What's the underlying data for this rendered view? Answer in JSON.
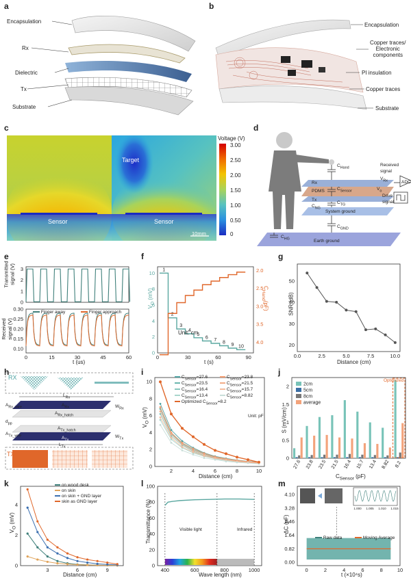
{
  "panels": {
    "a": {
      "label": "a",
      "layers": [
        "Encapsulation",
        "Rx",
        "Dielectric",
        "Tx",
        "Substrate"
      ]
    },
    "b": {
      "label": "b",
      "layers": [
        "Encapsulation",
        "Copper traces/\nElectronic\ncomponents",
        "PI insulation",
        "Copper traces",
        "Substrate"
      ]
    },
    "c": {
      "label": "c",
      "target": "Target",
      "sensor_left": "Sensor",
      "sensor_right": "Sensor",
      "scale": "10mm",
      "cbar_title": "Voltage (V)",
      "cbar_ticks": [
        "3.00",
        "2.50",
        "2.00",
        "1.50",
        "1.00",
        "0.50",
        "0"
      ]
    },
    "d": {
      "label": "d",
      "c_hand": "C",
      "c_hand_sub": "Hand",
      "rx": "Rx",
      "v_rx": "V",
      "v_rx_sub": "Rx",
      "pdms": "PDMS",
      "c_sensor": "C",
      "c_sensor_sub": "Sensor",
      "v_o": "V",
      "v_o_sub": "o",
      "tx": "Tx",
      "c_ng": "C",
      "c_ng_sub": "NG",
      "c_tg": "C",
      "c_tg_sub": "TG",
      "system_ground": "System ground",
      "c_gnd": "C",
      "c_gnd_sub": "GND",
      "c_hg": "C",
      "c_hg_sub": "HG",
      "earth_ground": "Earth ground",
      "received_signal": "Received\nsignal",
      "drive_signal": "Drive\nsignal",
      "adc": "ADC"
    },
    "e": {
      "label": "e",
      "ylabel_top": "Transmitted\nsignal (V)",
      "ylabel_bottom": "Received\nsignal (V)",
      "xlabel": "t (us)",
      "legend_away": "Finger away",
      "legend_approach": "Finger approach"
    },
    "f": {
      "label": "f",
      "xlabel": "t (s)",
      "ylabel_left": "V",
      "ylabel_left_sub": "O",
      "ylabel_left_unit": " (mV)",
      "ylabel_right": "C",
      "ylabel_right_sub": "Hand",
      "ylabel_right_unit": "(pF)",
      "unit": "Unit: cm"
    },
    "g": {
      "label": "g",
      "xlabel": "Distance (cm)",
      "ylabel": "SNR (dB)"
    },
    "h": {
      "label": "h",
      "rx": "RX",
      "tx": "TX",
      "l_rx": "L",
      "l_rx_sub": "Rx",
      "a_rx": "A",
      "a_rx_sub": "Rx",
      "w_rx": "W",
      "w_rx_sub": "Rx",
      "a_rx_wire": "A",
      "a_rx_wire_sub": "Rx_wire",
      "a_rx_hatch": "A",
      "a_rx_hatch_sub": "Rx_hatch",
      "d_pp": "d",
      "d_pp_sub": "pp",
      "a_tx_wire": "A",
      "a_tx_wire_sub": "Tx_wire",
      "a_tx_hatch": "A",
      "a_tx_hatch_sub": "Tx_hatch",
      "a_tx": "A",
      "a_tx_sub": "Tx",
      "w_tx": "W",
      "w_tx_sub": "Tx",
      "l_tx": "L",
      "l_tx_sub": "Tx"
    },
    "i": {
      "label": "i",
      "xlabel": "Distance (cm)",
      "ylabel": "V",
      "ylabel_sub": "O",
      "ylabel_unit": " (mV)",
      "unit": "Unit: pF",
      "optimized": "Optimized",
      "legend_prefix": "C",
      "legend_sub": "Sensor"
    },
    "j": {
      "label": "j",
      "xlabel": "C",
      "xlabel_sub": "Sensor",
      "xlabel_unit": " (pF)",
      "ylabel": "S (mV/cm)",
      "optimized": "Optimized"
    },
    "k": {
      "label": "k",
      "xlabel": "Distance (cm)",
      "ylabel": "V",
      "ylabel_sub": "O",
      "ylabel_unit": " (mV)"
    },
    "l": {
      "label": "l",
      "xlabel": "Wave length (nm)",
      "ylabel": "Transmittance (%)",
      "visible": "Visible light",
      "infrared": "Infrared"
    },
    "m": {
      "label": "m",
      "xlabel": "t (×10⁴s)",
      "ylabel": "ΔC (pF)",
      "legend_raw": "Raw data",
      "legend_ma": "Moving Average",
      "inset_x": [
        "1.000",
        "1.005",
        "1.010",
        "1.015"
      ]
    }
  },
  "colors": {
    "teal": "#5aa7a0",
    "orange": "#e0672a",
    "blue": "#3b6fb0",
    "darkteal": "#3e7f7a"
  },
  "chart_data": [
    {
      "id": "e",
      "type": "line",
      "x": [
        0,
        15,
        30,
        45,
        60
      ],
      "xlabel": "t (us)",
      "xlim": [
        0,
        60
      ],
      "top_yticks": [
        0,
        1,
        2,
        3
      ],
      "bottom_yticks": [
        0.1,
        0.15,
        0.2,
        0.25,
        0.3
      ],
      "series": [
        {
          "name": "Finger away"
        },
        {
          "name": "Finger approach"
        }
      ]
    },
    {
      "id": "f",
      "type": "line",
      "xlabel": "t (s)",
      "xlim": [
        0,
        90
      ],
      "xticks": [
        0,
        30,
        60,
        90
      ],
      "left_yticks": [
        0,
        2,
        4,
        6,
        8,
        10
      ],
      "right_yticks": [
        "2.0",
        "2.5",
        "3.0",
        "3.5",
        "4.0"
      ],
      "steps": [
        "1",
        "2",
        "3",
        "4",
        "5",
        "6",
        "7",
        "8",
        "9",
        "10"
      ],
      "vo_levels": [
        10.0,
        4.4,
        3.0,
        2.4,
        1.9,
        1.5,
        1.2,
        0.9,
        0.6,
        0.4
      ],
      "chand_levels": [
        4.35,
        3.2,
        2.9,
        2.7,
        2.55,
        2.4,
        2.3,
        2.2,
        2.12,
        2.05
      ]
    },
    {
      "id": "g",
      "type": "line",
      "xlabel": "Distance (cm)",
      "ylabel": "SNR (dB)",
      "x": [
        1,
        2,
        3,
        4,
        5,
        6,
        7,
        8,
        9,
        10
      ],
      "values": [
        53.8,
        47.0,
        40.5,
        40.1,
        36.4,
        35.7,
        27.2,
        27.6,
        24.8,
        21.2
      ],
      "xlim": [
        0,
        10.5
      ],
      "ylim": [
        17,
        58
      ],
      "xticks": [
        "0.0",
        "2.5",
        "5.0",
        "7.5",
        "10.0"
      ],
      "yticks": [
        20,
        30,
        40,
        50
      ]
    },
    {
      "id": "i",
      "type": "line",
      "xlabel": "Distance (cm)",
      "x": [
        1,
        2,
        3,
        4,
        5,
        6,
        7,
        8,
        9,
        10
      ],
      "xticks": [
        2,
        4,
        6,
        8,
        10
      ],
      "yticks": [
        0,
        2,
        4,
        6,
        8,
        10
      ],
      "ylim": [
        0,
        10.5
      ],
      "series": [
        {
          "name": "27.6",
          "values": [
            7.4,
            4.3,
            3.0,
            2.2,
            1.6,
            1.2,
            0.95,
            0.75,
            0.6,
            0.5
          ]
        },
        {
          "name": "23.5",
          "values": [
            6.8,
            3.9,
            2.7,
            2.0,
            1.5,
            1.1,
            0.9,
            0.7,
            0.55,
            0.45
          ]
        },
        {
          "name": "16.4",
          "values": [
            6.2,
            3.6,
            2.5,
            1.8,
            1.3,
            1.0,
            0.8,
            0.6,
            0.5,
            0.4
          ]
        },
        {
          "name": "13.4",
          "values": [
            5.5,
            3.2,
            2.2,
            1.6,
            1.2,
            0.9,
            0.7,
            0.55,
            0.45,
            0.35
          ]
        },
        {
          "name": "23.8",
          "values": [
            7.0,
            4.0,
            2.8,
            2.1,
            1.55,
            1.15,
            0.9,
            0.72,
            0.58,
            0.47
          ]
        },
        {
          "name": "21.5",
          "values": [
            6.5,
            3.8,
            2.6,
            1.9,
            1.4,
            1.05,
            0.85,
            0.65,
            0.52,
            0.42
          ]
        },
        {
          "name": "15.7",
          "values": [
            5.8,
            3.4,
            2.3,
            1.7,
            1.25,
            0.95,
            0.75,
            0.58,
            0.47,
            0.38
          ]
        },
        {
          "name": "8.82",
          "values": [
            4.9,
            2.8,
            1.9,
            1.4,
            1.0,
            0.8,
            0.6,
            0.48,
            0.4,
            0.3
          ]
        },
        {
          "name": "8.2",
          "values": [
            10.0,
            6.2,
            4.5,
            3.5,
            2.6,
            1.9,
            1.5,
            1.1,
            0.8,
            0.5
          ]
        }
      ]
    },
    {
      "id": "j",
      "type": "bar",
      "categories": [
        "27.6",
        "23.8",
        "23.5",
        "21.5",
        "16.4",
        "15.7",
        "13.4",
        "8.82",
        "8.2"
      ],
      "yticks": [
        0,
        0.5,
        1.0,
        1.5,
        2.0
      ],
      "ylim": [
        0,
        2.25
      ],
      "series": [
        {
          "name": "2cm",
          "values": [
            0.28,
            0.9,
            1.15,
            1.2,
            1.62,
            1.3,
            1.0,
            0.85,
            2.18
          ]
        },
        {
          "name": "5cm",
          "values": [
            0.03,
            0.03,
            0.03,
            0.03,
            0.03,
            0.03,
            0.03,
            0.03,
            0.03
          ]
        },
        {
          "name": "8cm",
          "values": [
            0.08,
            0.09,
            0.1,
            0.1,
            0.12,
            0.1,
            0.09,
            0.08,
            0.16
          ]
        },
        {
          "name": "average",
          "values": [
            0.58,
            0.63,
            0.65,
            0.58,
            0.55,
            0.42,
            0.4,
            0.3,
            0.98
          ]
        }
      ]
    },
    {
      "id": "k",
      "type": "line",
      "xlabel": "Distance (cm)",
      "x": [
        1,
        2,
        3,
        4,
        5,
        6,
        7,
        8,
        9,
        10
      ],
      "xticks": [
        3,
        6,
        9
      ],
      "yticks": [
        0,
        2,
        4
      ],
      "ylim": [
        0,
        5.2
      ],
      "series": [
        {
          "name": "on wood desk",
          "values": [
            2.1,
            1.2,
            0.6,
            0.3,
            0.15,
            0.08,
            0.05,
            0.03,
            0.02,
            0.01
          ]
        },
        {
          "name": "on skin",
          "values": [
            0.6,
            0.4,
            0.25,
            0.15,
            0.1,
            0.06,
            0.04,
            0.03,
            0.02,
            0.01
          ]
        },
        {
          "name": "on skin + GND layer",
          "values": [
            3.8,
            2.2,
            1.2,
            0.8,
            0.5,
            0.3,
            0.2,
            0.12,
            0.08,
            0.05
          ]
        },
        {
          "name": "skin as GND layer",
          "values": [
            5.0,
            2.9,
            1.7,
            1.2,
            0.8,
            0.55,
            0.4,
            0.3,
            0.2,
            0.1
          ]
        }
      ]
    },
    {
      "id": "l",
      "type": "line",
      "xlabel": "Wave length (nm)",
      "ylabel": "Transmittance (%)",
      "x": [
        400,
        420,
        450,
        500,
        600,
        700,
        800,
        900,
        1000
      ],
      "values": [
        76,
        80,
        81,
        82,
        83,
        83.5,
        84,
        84,
        83.5
      ],
      "xticks": [
        400,
        600,
        800,
        1000
      ],
      "yticks": [
        0,
        20,
        40,
        60,
        80,
        100
      ],
      "xlim": [
        350,
        1050
      ],
      "ylim": [
        0,
        100
      ]
    },
    {
      "id": "m",
      "type": "line",
      "xlabel": "t (×10⁴s)",
      "ylabel": "ΔC (pF)",
      "xticks": [
        0,
        2,
        4,
        6,
        8,
        10
      ],
      "yticks": [
        "0.00",
        "0.82",
        "1.64",
        "2.46",
        "3.28",
        "4.10"
      ],
      "xlim": [
        -1,
        10
      ],
      "ylim": [
        -0.2,
        4.6
      ],
      "series": [
        {
          "name": "Raw data",
          "mean": 0.82,
          "amplitude": 0.65
        },
        {
          "name": "Moving Average",
          "mean": 0.82
        }
      ]
    }
  ]
}
